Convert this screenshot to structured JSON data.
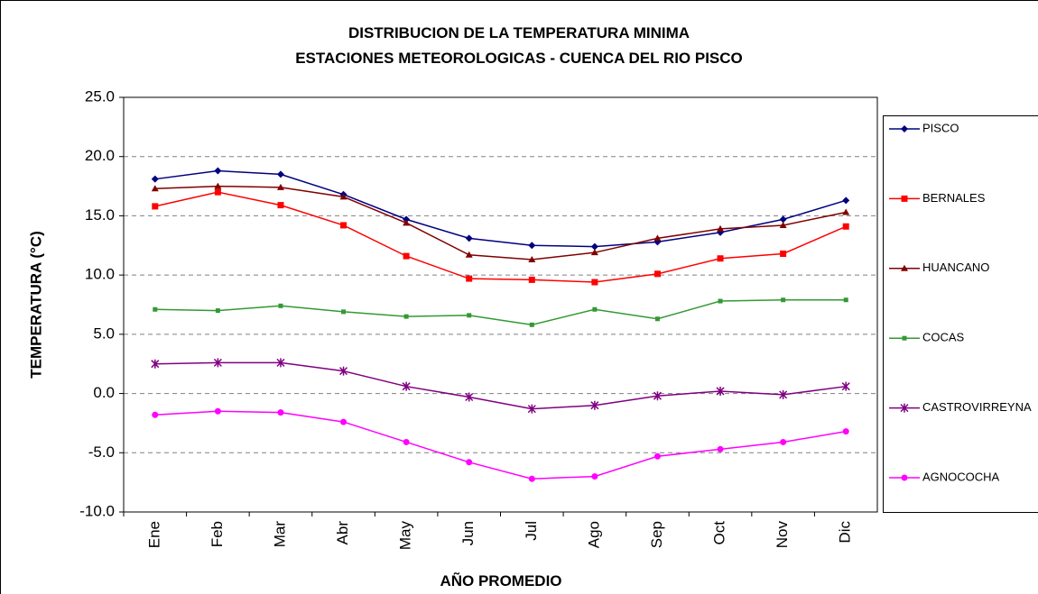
{
  "chart_data": {
    "type": "line",
    "title": "DISTRIBUCION DE LA TEMPERATURA MINIMA",
    "subtitle": "ESTACIONES METEOROLOGICAS - CUENCA DEL RIO PISCO",
    "x_label": "AÑO PROMEDIO",
    "y_label": "TEMPERATURA (°C)",
    "categories": [
      "Ene",
      "Feb",
      "Mar",
      "Abr",
      "May",
      "Jun",
      "Jul",
      "Ago",
      "Sep",
      "Oct",
      "Nov",
      "Dic"
    ],
    "ylim": [
      -10,
      25
    ],
    "yticks": [
      {
        "value": -10,
        "label": "-10.0"
      },
      {
        "value": -5,
        "label": "-5.0"
      },
      {
        "value": 0,
        "label": "0.0"
      },
      {
        "value": 5,
        "label": "5.0"
      },
      {
        "value": 10,
        "label": "10.0"
      },
      {
        "value": 15,
        "label": "15.0"
      },
      {
        "value": 20,
        "label": "20.0"
      },
      {
        "value": 25,
        "label": "25.0"
      }
    ],
    "grid": true,
    "legend": "right",
    "series": [
      {
        "name": "PISCO",
        "color": "#000080",
        "marker": "diamond",
        "values": [
          18.1,
          18.8,
          18.5,
          16.8,
          14.7,
          13.1,
          12.5,
          12.4,
          12.8,
          13.6,
          14.7,
          16.3
        ]
      },
      {
        "name": "BERNALES",
        "color": "#ff0000",
        "marker": "square",
        "values": [
          15.8,
          17.0,
          15.9,
          14.2,
          11.6,
          9.7,
          9.6,
          9.4,
          10.1,
          11.4,
          11.8,
          14.1
        ]
      },
      {
        "name": "HUANCANO",
        "color": "#800000",
        "marker": "triangle",
        "values": [
          17.3,
          17.5,
          17.4,
          16.6,
          14.4,
          11.7,
          11.3,
          11.9,
          13.1,
          13.9,
          14.2,
          15.3
        ]
      },
      {
        "name": "COCAS",
        "color": "#339933",
        "marker": "small-square",
        "values": [
          7.1,
          7.0,
          7.4,
          6.9,
          6.5,
          6.6,
          5.8,
          7.1,
          6.3,
          7.8,
          7.9,
          7.9
        ]
      },
      {
        "name": "CASTROVIRREYNA",
        "color": "#800080",
        "marker": "star",
        "values": [
          2.5,
          2.6,
          2.6,
          1.9,
          0.6,
          -0.3,
          -1.3,
          -1.0,
          -0.2,
          0.2,
          -0.1,
          0.6
        ]
      },
      {
        "name": "AGNOCOCHA",
        "color": "#ff00ff",
        "marker": "circle",
        "values": [
          -1.8,
          -1.5,
          -1.6,
          -2.4,
          -4.1,
          -5.8,
          -7.2,
          -7.0,
          -5.3,
          -4.7,
          -4.1,
          -3.2
        ]
      }
    ]
  }
}
